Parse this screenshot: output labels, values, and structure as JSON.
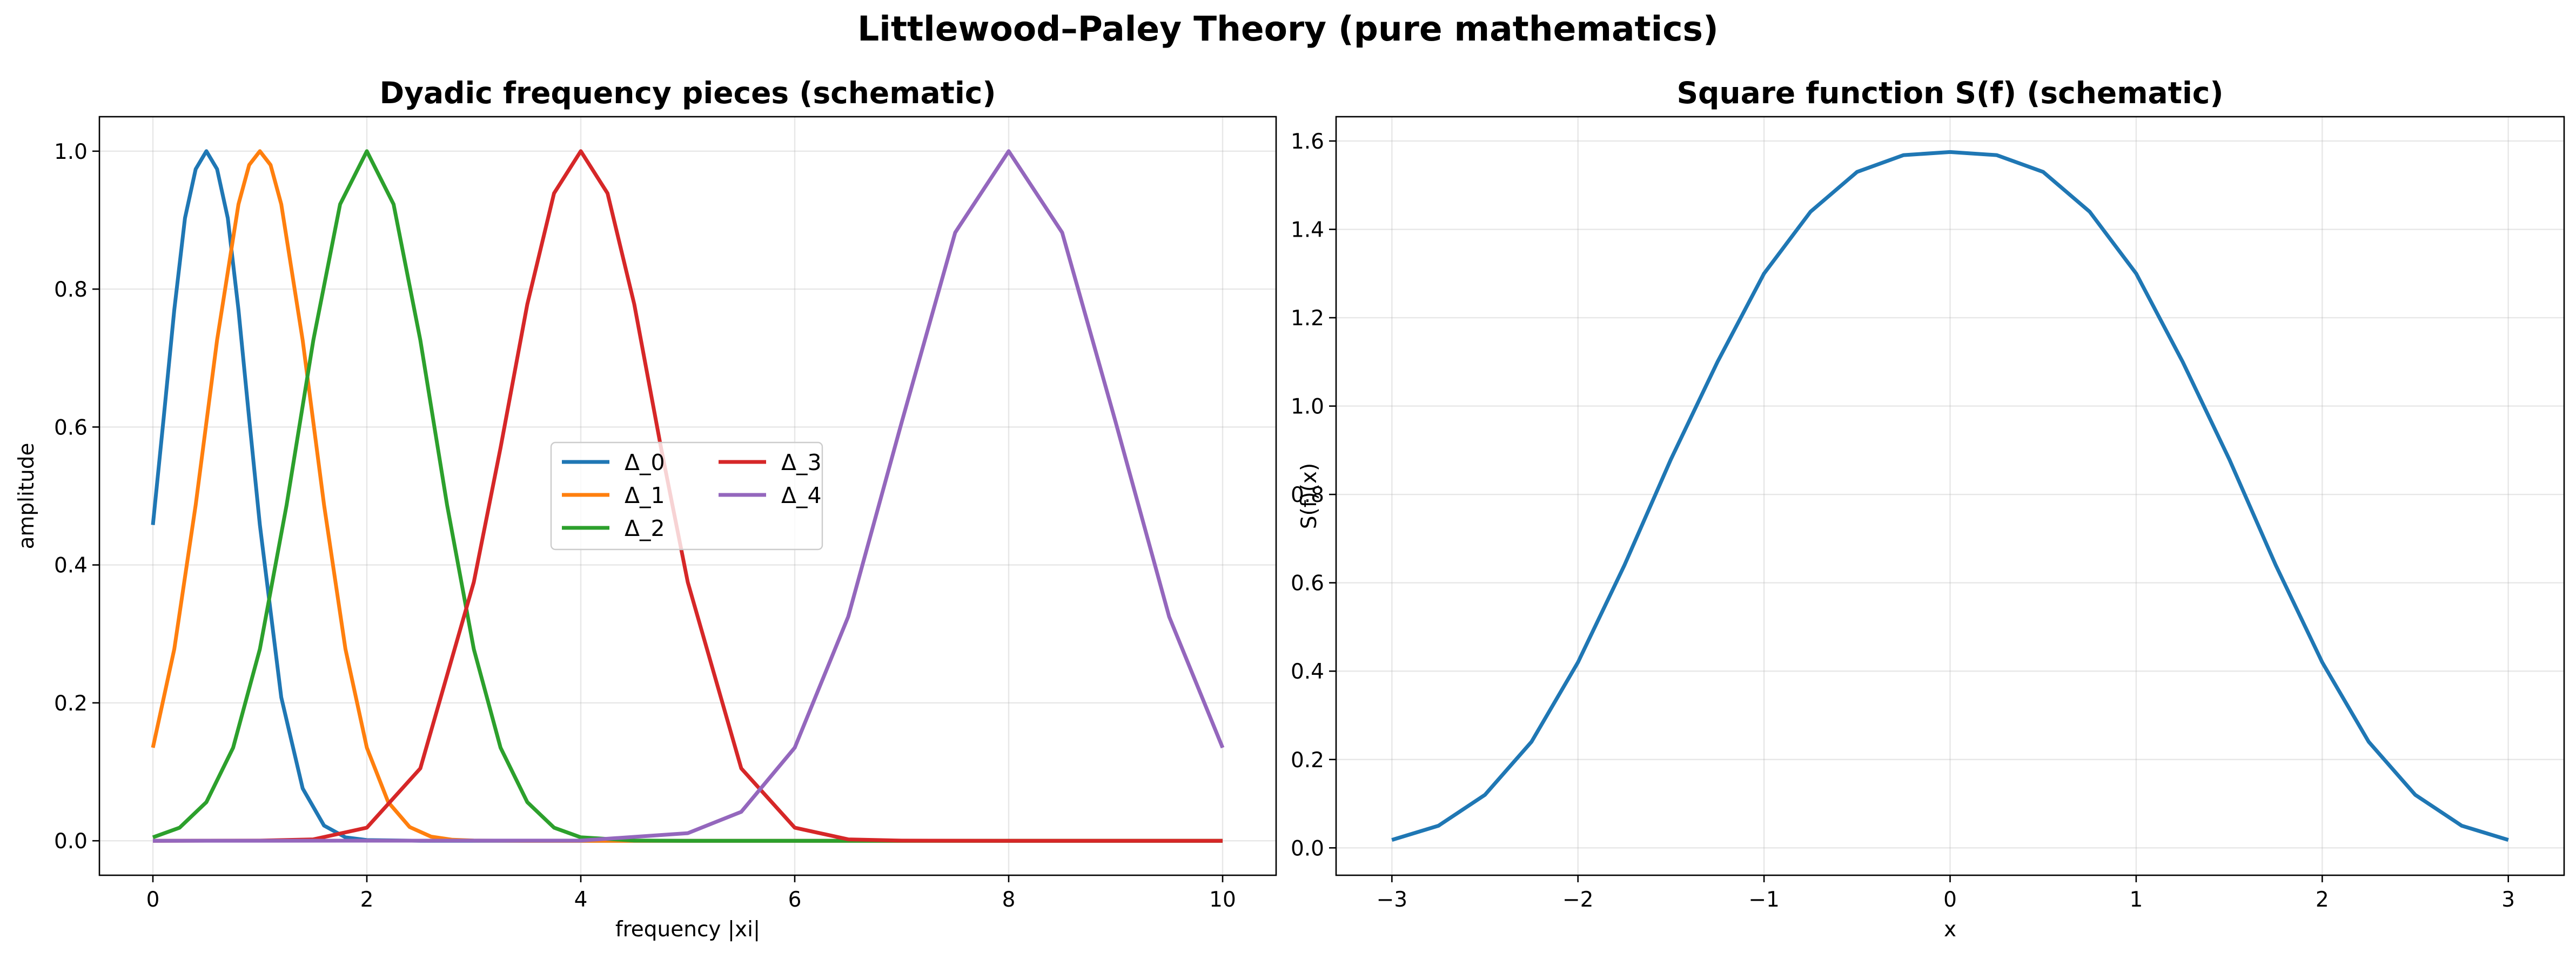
{
  "figure_title": "Littlewood–Paley Theory (pure mathematics)",
  "chart_data": [
    {
      "type": "line",
      "title": "Dyadic frequency pieces (schematic)",
      "xlabel": "frequency |xi|",
      "ylabel": "amplitude",
      "xlim": [
        -0.5,
        10.5
      ],
      "ylim": [
        -0.05,
        1.05
      ],
      "xticks": [
        0,
        2,
        4,
        6,
        8,
        10
      ],
      "xtick_labels": [
        "0",
        "2",
        "4",
        "6",
        "8",
        "10"
      ],
      "yticks": [
        0.0,
        0.2,
        0.4,
        0.6,
        0.8,
        1.0
      ],
      "ytick_labels": [
        "0.0",
        "0.2",
        "0.4",
        "0.6",
        "0.8",
        "1.0"
      ],
      "grid": true,
      "legend": {
        "placement": "center",
        "columns": 2
      },
      "series": [
        {
          "name": "Δ_0",
          "color": "#1f77b4",
          "center": 0.5,
          "x": [
            0,
            0.1,
            0.2,
            0.3,
            0.4,
            0.5,
            0.6,
            0.7,
            0.8,
            0.9,
            1.0,
            1.2,
            1.4,
            1.6,
            1.8,
            2.0,
            2.5,
            3.0,
            10.0
          ],
          "y": [
            0.458,
            0.612,
            0.77,
            0.903,
            0.974,
            1.0,
            0.974,
            0.903,
            0.77,
            0.612,
            0.458,
            0.208,
            0.076,
            0.022,
            0.005,
            0.001,
            0.0,
            0.0,
            0.0
          ]
        },
        {
          "name": "Δ_1",
          "color": "#ff7f0e",
          "center": 1.0,
          "x": [
            0,
            0.2,
            0.4,
            0.6,
            0.8,
            0.9,
            1.0,
            1.1,
            1.2,
            1.4,
            1.6,
            1.8,
            2.0,
            2.2,
            2.4,
            2.6,
            2.8,
            3.0,
            3.5,
            4.0,
            10.0
          ],
          "y": [
            0.135,
            0.278,
            0.487,
            0.726,
            0.923,
            0.98,
            1.0,
            0.98,
            0.923,
            0.726,
            0.487,
            0.278,
            0.135,
            0.056,
            0.02,
            0.006,
            0.0015,
            0.0003,
            0.0,
            0.0,
            0.0
          ]
        },
        {
          "name": "Δ_2",
          "color": "#2ca02c",
          "center": 2.0,
          "x": [
            0,
            0.25,
            0.5,
            0.75,
            1.0,
            1.25,
            1.5,
            1.75,
            2.0,
            2.25,
            2.5,
            2.75,
            3.0,
            3.25,
            3.5,
            3.75,
            4.0,
            4.5,
            5.0,
            5.5,
            6.0,
            7.0,
            10.0
          ],
          "y": [
            0.005,
            0.019,
            0.056,
            0.135,
            0.278,
            0.487,
            0.726,
            0.923,
            1.0,
            0.923,
            0.726,
            0.487,
            0.278,
            0.135,
            0.056,
            0.019,
            0.005,
            0.0003,
            0.0,
            0.0,
            0.0,
            0.0,
            0.0
          ]
        },
        {
          "name": "Δ_3",
          "color": "#d62728",
          "center": 4.0,
          "x": [
            0,
            1.0,
            1.5,
            2.0,
            2.5,
            3.0,
            3.25,
            3.5,
            3.75,
            4.0,
            4.25,
            4.5,
            4.75,
            5.0,
            5.5,
            6.0,
            6.5,
            7.0,
            8.0,
            10.0
          ],
          "y": [
            0.0,
            0.0002,
            0.002,
            0.019,
            0.105,
            0.375,
            0.57,
            0.778,
            0.939,
            1.0,
            0.939,
            0.778,
            0.57,
            0.375,
            0.105,
            0.019,
            0.002,
            0.0002,
            0.0,
            0.0
          ]
        },
        {
          "name": "Δ_4",
          "color": "#9467bd",
          "center": 8.0,
          "x": [
            0,
            4.0,
            5.0,
            5.5,
            6.0,
            6.5,
            7.0,
            7.5,
            8.0,
            8.5,
            9.0,
            9.5,
            10.0
          ],
          "y": [
            0.0,
            0.0003,
            0.011,
            0.042,
            0.135,
            0.325,
            0.607,
            0.882,
            1.0,
            0.882,
            0.607,
            0.325,
            0.135
          ]
        }
      ]
    },
    {
      "type": "line",
      "title": "Square function S(f) (schematic)",
      "xlabel": "x",
      "ylabel": "S(f)(x)",
      "xlim": [
        -3.3,
        3.3
      ],
      "ylim": [
        -0.062,
        1.655
      ],
      "xticks": [
        -3,
        -2,
        -1,
        0,
        1,
        2,
        3
      ],
      "xtick_labels": [
        "−3",
        "−2",
        "−1",
        "0",
        "1",
        "2",
        "3"
      ],
      "yticks": [
        0.0,
        0.2,
        0.4,
        0.6,
        0.8,
        1.0,
        1.2,
        1.4,
        1.6
      ],
      "ytick_labels": [
        "0.0",
        "0.2",
        "0.4",
        "0.6",
        "0.8",
        "1.0",
        "1.2",
        "1.4",
        "1.6"
      ],
      "grid": true,
      "series": [
        {
          "color": "#1f77b4",
          "x": [
            -3.0,
            -2.75,
            -2.5,
            -2.25,
            -2.0,
            -1.75,
            -1.5,
            -1.25,
            -1.0,
            -0.75,
            -0.5,
            -0.25,
            0.0,
            0.25,
            0.5,
            0.75,
            1.0,
            1.25,
            1.5,
            1.75,
            2.0,
            2.25,
            2.5,
            2.75,
            3.0
          ],
          "y": [
            0.018,
            0.05,
            0.12,
            0.24,
            0.42,
            0.64,
            0.88,
            1.1,
            1.3,
            1.44,
            1.53,
            1.568,
            1.575,
            1.568,
            1.53,
            1.44,
            1.3,
            1.1,
            0.88,
            0.64,
            0.42,
            0.24,
            0.12,
            0.05,
            0.018
          ]
        }
      ]
    }
  ]
}
